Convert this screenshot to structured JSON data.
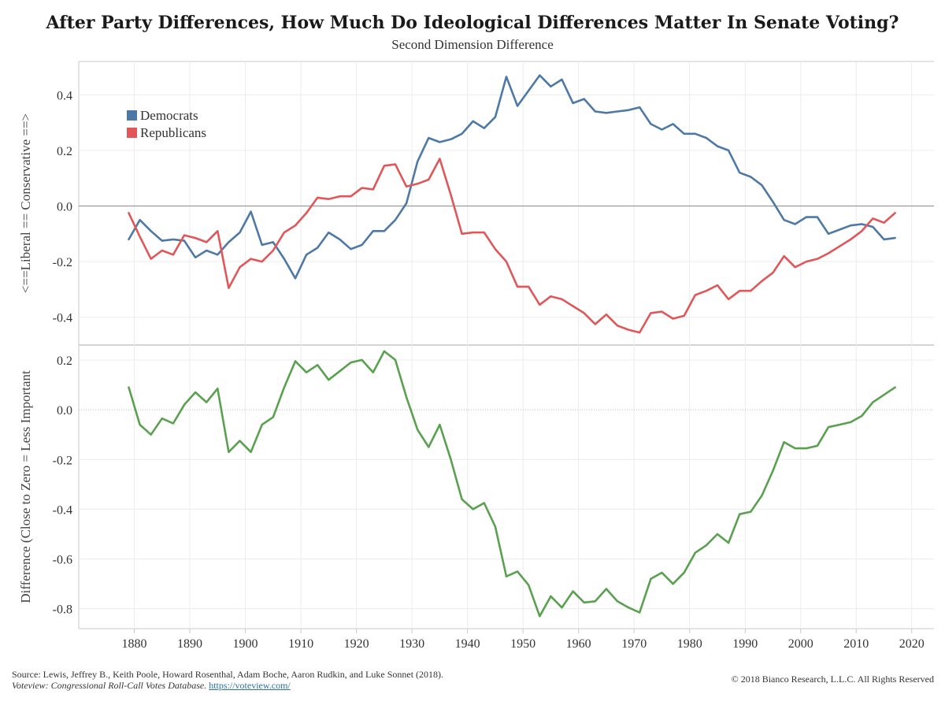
{
  "title": "After Party Differences, How Much Do Ideological Differences Matter In Senate Voting?",
  "subtitle": "Second Dimension Difference",
  "source": {
    "prefix": "Source: Lewis, Jeffrey B., Keith Poole, Howard Rosenthal, Adam Boche, Aaron Rudkin, and Luke Sonnet (2018). ",
    "italic": "Voteview: Congressional Roll-Call Votes Database.",
    "link": "https://voteview.com/"
  },
  "copyright": "© 2018 Bianco Research, L.L.C. All Rights Reserved",
  "colors": {
    "democrats": "#4e79a7",
    "republicans": "#e15759",
    "difference": "#59a14f",
    "grid": "#ececec",
    "axis": "#c8c8c8",
    "zero_line": "#9a9a9a"
  },
  "chart_data": [
    {
      "type": "line",
      "ylabel": "<==Liberal == Conservative ==>",
      "xlim": [
        1870,
        2024
      ],
      "ylim": [
        -0.5,
        0.52
      ],
      "yticks": [
        0.4,
        0.2,
        0.0,
        -0.2,
        -0.4
      ],
      "ytick_labels": [
        "0.4",
        "0.2",
        "0.0",
        "-0.2",
        "-0.4"
      ],
      "legend_placement": "top-left",
      "zero_line": true,
      "x": [
        1879,
        1881,
        1883,
        1885,
        1887,
        1889,
        1891,
        1893,
        1895,
        1897,
        1899,
        1901,
        1903,
        1905,
        1907,
        1909,
        1911,
        1913,
        1915,
        1917,
        1919,
        1921,
        1923,
        1925,
        1927,
        1929,
        1931,
        1933,
        1935,
        1937,
        1939,
        1941,
        1943,
        1945,
        1947,
        1949,
        1951,
        1953,
        1955,
        1957,
        1959,
        1961,
        1963,
        1965,
        1967,
        1969,
        1971,
        1973,
        1975,
        1977,
        1979,
        1981,
        1983,
        1985,
        1987,
        1989,
        1991,
        1993,
        1995,
        1997,
        1999,
        2001,
        2003,
        2005,
        2007,
        2009,
        2011,
        2013,
        2015,
        2017
      ],
      "series": [
        {
          "name": "Democrats",
          "color": "#4e79a7",
          "values": [
            -0.12,
            -0.05,
            -0.09,
            -0.125,
            -0.12,
            -0.125,
            -0.185,
            -0.16,
            -0.175,
            -0.13,
            -0.095,
            -0.02,
            -0.14,
            -0.13,
            -0.19,
            -0.26,
            -0.175,
            -0.15,
            -0.095,
            -0.12,
            -0.155,
            -0.14,
            -0.09,
            -0.09,
            -0.05,
            0.01,
            0.16,
            0.245,
            0.23,
            0.24,
            0.26,
            0.305,
            0.28,
            0.32,
            0.465,
            0.36,
            0.415,
            0.47,
            0.43,
            0.455,
            0.37,
            0.385,
            0.34,
            0.335,
            0.34,
            0.345,
            0.355,
            0.295,
            0.275,
            0.295,
            0.26,
            0.26,
            0.245,
            0.215,
            0.2,
            0.12,
            0.105,
            0.075,
            0.015,
            -0.05,
            -0.065,
            -0.04,
            -0.04,
            -0.1,
            -0.085,
            -0.07,
            -0.065,
            -0.075,
            -0.12,
            -0.115
          ]
        },
        {
          "name": "Republicans",
          "color": "#e15759",
          "values": [
            -0.025,
            -0.11,
            -0.19,
            -0.16,
            -0.175,
            -0.105,
            -0.115,
            -0.13,
            -0.09,
            -0.295,
            -0.22,
            -0.19,
            -0.2,
            -0.16,
            -0.095,
            -0.07,
            -0.025,
            0.03,
            0.025,
            0.035,
            0.035,
            0.065,
            0.06,
            0.145,
            0.15,
            0.07,
            0.08,
            0.095,
            0.17,
            0.04,
            -0.1,
            -0.095,
            -0.095,
            -0.155,
            -0.2,
            -0.29,
            -0.29,
            -0.355,
            -0.325,
            -0.335,
            -0.36,
            -0.385,
            -0.425,
            -0.39,
            -0.43,
            -0.445,
            -0.455,
            -0.385,
            -0.38,
            -0.405,
            -0.395,
            -0.32,
            -0.305,
            -0.285,
            -0.335,
            -0.305,
            -0.305,
            -0.27,
            -0.24,
            -0.18,
            -0.22,
            -0.2,
            -0.19,
            -0.17,
            -0.145,
            -0.12,
            -0.09,
            -0.045,
            -0.06,
            -0.025
          ]
        }
      ]
    },
    {
      "type": "line",
      "ylabel": "Difference (Close to Zero = Less Important",
      "xlim": [
        1870,
        2024
      ],
      "ylim": [
        -0.88,
        0.26
      ],
      "yticks": [
        0.2,
        0.0,
        -0.2,
        -0.4,
        -0.6,
        -0.8
      ],
      "ytick_labels": [
        "0.2",
        "0.0",
        "-0.2",
        "-0.4",
        "-0.6",
        "-0.8"
      ],
      "xticks": [
        1880,
        1890,
        1900,
        1910,
        1920,
        1930,
        1940,
        1950,
        1960,
        1970,
        1980,
        1990,
        2000,
        2010,
        2020
      ],
      "xtick_labels": [
        "1880",
        "1890",
        "1900",
        "1910",
        "1920",
        "1930",
        "1940",
        "1950",
        "1960",
        "1970",
        "1980",
        "1990",
        "2000",
        "2010",
        "2020"
      ],
      "zero_line": true,
      "x": [
        1879,
        1881,
        1883,
        1885,
        1887,
        1889,
        1891,
        1893,
        1895,
        1897,
        1899,
        1901,
        1903,
        1905,
        1907,
        1909,
        1911,
        1913,
        1915,
        1917,
        1919,
        1921,
        1923,
        1925,
        1927,
        1929,
        1931,
        1933,
        1935,
        1937,
        1939,
        1941,
        1943,
        1945,
        1947,
        1949,
        1951,
        1953,
        1955,
        1957,
        1959,
        1961,
        1963,
        1965,
        1967,
        1969,
        1971,
        1973,
        1975,
        1977,
        1979,
        1981,
        1983,
        1985,
        1987,
        1989,
        1991,
        1993,
        1995,
        1997,
        1999,
        2001,
        2003,
        2005,
        2007,
        2009,
        2011,
        2013,
        2015,
        2017
      ],
      "series": [
        {
          "color": "#59a14f",
          "values": [
            0.09,
            -0.06,
            -0.1,
            -0.035,
            -0.055,
            0.02,
            0.07,
            0.03,
            0.085,
            -0.17,
            -0.125,
            -0.17,
            -0.06,
            -0.03,
            0.09,
            0.195,
            0.15,
            0.18,
            0.12,
            0.155,
            0.19,
            0.2,
            0.15,
            0.235,
            0.2,
            0.05,
            -0.08,
            -0.15,
            -0.06,
            -0.2,
            -0.36,
            -0.4,
            -0.375,
            -0.47,
            -0.67,
            -0.65,
            -0.705,
            -0.83,
            -0.75,
            -0.795,
            -0.73,
            -0.775,
            -0.77,
            -0.72,
            -0.77,
            -0.795,
            -0.815,
            -0.68,
            -0.655,
            -0.7,
            -0.655,
            -0.575,
            -0.545,
            -0.5,
            -0.535,
            -0.42,
            -0.41,
            -0.345,
            -0.245,
            -0.13,
            -0.155,
            -0.155,
            -0.145,
            -0.07,
            -0.06,
            -0.05,
            -0.025,
            0.03,
            0.06,
            0.09
          ]
        }
      ]
    }
  ]
}
